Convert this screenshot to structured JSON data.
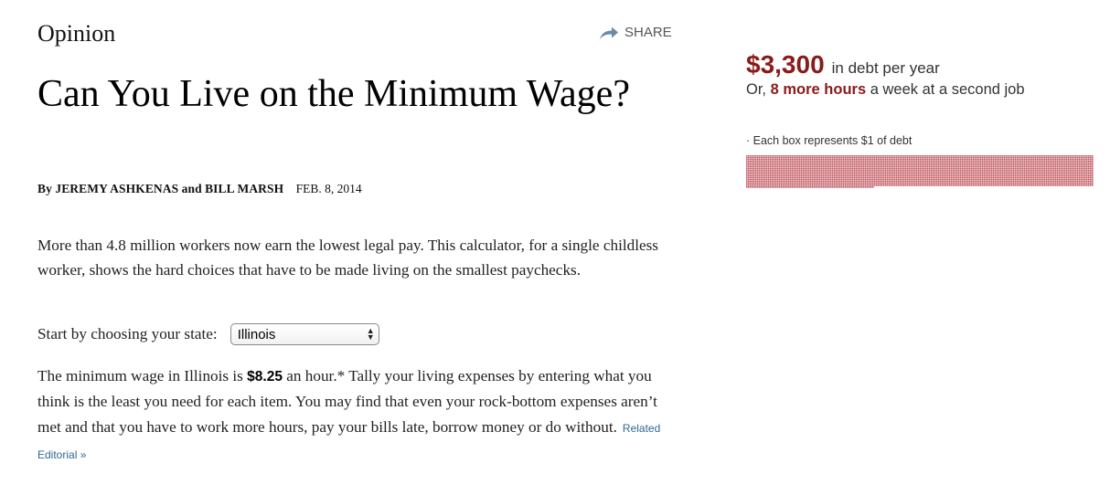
{
  "section": "Opinion",
  "share": {
    "label": "SHARE"
  },
  "headline": "Can You Live on the Minimum Wage?",
  "byline": {
    "prefix": "By",
    "author1": "JEREMY ASHKENAS",
    "conjunction": "and",
    "author2": "BILL MARSH",
    "date": "FEB. 8, 2014"
  },
  "intro": "More than 4.8 million workers now earn the lowest legal pay. This calculator, for a single childless worker, shows the hard choices that have to be made living on the smallest paychecks.",
  "state_selector": {
    "label": "Start by choosing your state:",
    "selected": "Illinois"
  },
  "wage_paragraph": {
    "before_state": "The minimum wage in ",
    "state": "Illinois",
    "middle": " is ",
    "wage": "$8.25",
    "after": " an hour.* Tally your living expenses by entering what you think is the least you need for each item. You may find that even your rock-bottom expenses aren’t met and that you have to work more hours, pay your bills late, borrow money or do without.",
    "related_link": "Related Editorial »"
  },
  "debt_summary": {
    "amount": "$3,300",
    "description": "in debt per year",
    "hours_prefix": "Or, ",
    "hours_number": "8",
    "hours_unit": "more hours",
    "hours_suffix": " a week at a second job"
  },
  "debt_chart": {
    "legend": "· Each box represents $1 of debt",
    "total_boxes": 3300,
    "box_color": "#c0585f"
  },
  "colors": {
    "accent_red": "#8b1a1a",
    "link_blue": "#326891"
  }
}
